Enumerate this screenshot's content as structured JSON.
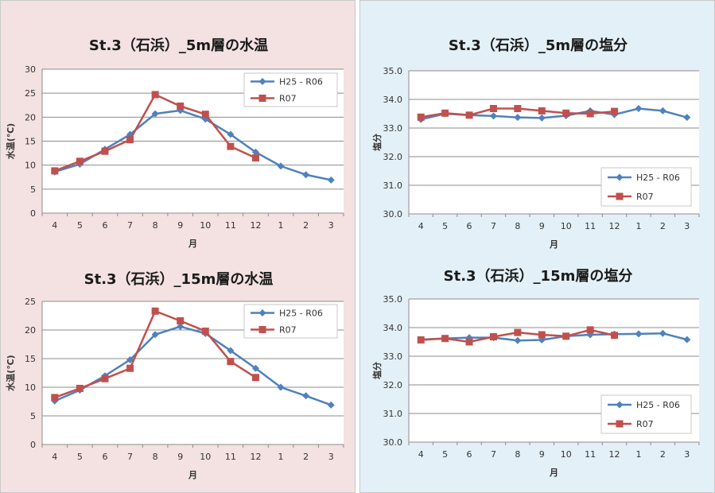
{
  "colors": {
    "series_a": "#4F81BD",
    "series_b": "#C0504D",
    "left_bg": "#f4e1e1",
    "right_bg": "#e3f0f7"
  },
  "chart_data": [
    {
      "id": "temp5",
      "type": "line",
      "title": "St.3（石浜）_5m層の水温",
      "xlabel": "月",
      "ylabel": "水温(℃)",
      "categories": [
        "4",
        "5",
        "6",
        "7",
        "8",
        "9",
        "10",
        "11",
        "12",
        "1",
        "2",
        "3"
      ],
      "ylim": [
        0,
        30
      ],
      "yticks": [
        "0",
        "5",
        "10",
        "15",
        "20",
        "25",
        "30"
      ],
      "series": [
        {
          "name": "H25 - R06",
          "values": [
            8.6,
            10.2,
            13.3,
            16.4,
            20.7,
            21.4,
            19.6,
            16.4,
            12.7,
            9.8,
            8.0,
            6.9
          ]
        },
        {
          "name": "R07",
          "values": [
            8.8,
            10.8,
            12.9,
            15.3,
            24.7,
            22.3,
            20.6,
            13.9,
            11.5,
            null,
            null,
            null
          ]
        }
      ],
      "legend_position": "top-right"
    },
    {
      "id": "sal5",
      "type": "line",
      "title": "St.3（石浜）_5m層の塩分",
      "xlabel": "月",
      "ylabel": "塩分",
      "categories": [
        "4",
        "5",
        "6",
        "7",
        "8",
        "9",
        "10",
        "11",
        "12",
        "1",
        "2",
        "3"
      ],
      "ylim": [
        30,
        35
      ],
      "yticks": [
        "30.0",
        "31.0",
        "32.0",
        "33.0",
        "34.0",
        "35.0"
      ],
      "series": [
        {
          "name": "H25 - R06",
          "values": [
            33.3,
            33.5,
            33.45,
            33.42,
            33.37,
            33.35,
            33.43,
            33.6,
            33.47,
            33.68,
            33.6,
            33.37
          ]
        },
        {
          "name": "R07",
          "values": [
            33.38,
            33.52,
            33.45,
            33.68,
            33.68,
            33.6,
            33.52,
            33.5,
            33.58,
            null,
            null,
            null
          ]
        }
      ],
      "legend_position": "bottom-right"
    },
    {
      "id": "temp15",
      "type": "line",
      "title": "St.3（石浜）_15m層の水温",
      "xlabel": "月",
      "ylabel": "水温(℃)",
      "categories": [
        "4",
        "5",
        "6",
        "7",
        "8",
        "9",
        "10",
        "11",
        "12",
        "1",
        "2",
        "3"
      ],
      "ylim": [
        0,
        25
      ],
      "yticks": [
        "0",
        "5",
        "10",
        "15",
        "20",
        "25"
      ],
      "series": [
        {
          "name": "H25 - R06",
          "values": [
            7.6,
            9.5,
            12.0,
            14.8,
            19.2,
            20.6,
            19.4,
            16.4,
            13.3,
            10.0,
            8.5,
            6.9
          ]
        },
        {
          "name": "R07",
          "values": [
            8.2,
            9.8,
            11.5,
            13.3,
            23.3,
            21.6,
            19.8,
            14.5,
            11.7,
            null,
            null,
            null
          ]
        }
      ],
      "legend_position": "top-right"
    },
    {
      "id": "sal15",
      "type": "line",
      "title": "St.3（石浜）_15m層の塩分",
      "xlabel": "月",
      "ylabel": "塩分",
      "categories": [
        "4",
        "5",
        "6",
        "7",
        "8",
        "9",
        "10",
        "11",
        "12",
        "1",
        "2",
        "3"
      ],
      "ylim": [
        30,
        35
      ],
      "yticks": [
        "30.0",
        "31.0",
        "32.0",
        "33.0",
        "34.0",
        "35.0"
      ],
      "series": [
        {
          "name": "H25 - R06",
          "values": [
            33.58,
            33.62,
            33.65,
            33.65,
            33.55,
            33.57,
            33.7,
            33.75,
            33.77,
            33.78,
            33.8,
            33.58
          ]
        },
        {
          "name": "R07",
          "values": [
            33.57,
            33.62,
            33.5,
            33.68,
            33.83,
            33.75,
            33.7,
            33.92,
            33.73,
            null,
            null,
            null
          ]
        }
      ],
      "legend_position": "bottom-right"
    }
  ]
}
